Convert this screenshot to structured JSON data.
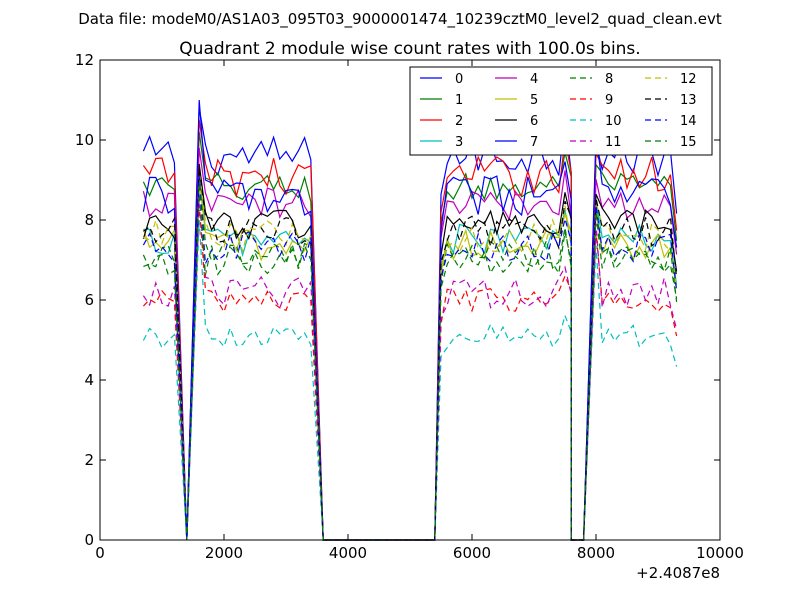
{
  "chart_data": {
    "type": "line",
    "suptitle": "Data file: modeM0/AS1A03_095T03_9000001474_10239cztM0_level2_quad_clean.evt",
    "title": "Quadrant 2 module wise count rates with 100.0s bins.",
    "xlabel": "",
    "ylabel": "",
    "x_offset_label": "+2.4087e8",
    "xlim": [
      0,
      10000
    ],
    "ylim": [
      0,
      12
    ],
    "xticks": [
      "0",
      "2000",
      "4000",
      "6000",
      "8000",
      "10000"
    ],
    "yticks": [
      "0",
      "2",
      "4",
      "6",
      "8",
      "10",
      "12"
    ],
    "legend_position": "top-right",
    "segments": [
      {
        "x_start": 700,
        "n": 6
      },
      {
        "x_start": 1400,
        "n": 1,
        "gap": true
      },
      {
        "x_start": 1600,
        "n": 19
      },
      {
        "x_start": 3600,
        "n": 19,
        "gap": true
      },
      {
        "x_start": 5500,
        "n": 22
      },
      {
        "x_start": 7600,
        "n": 1,
        "gap": true
      },
      {
        "x_start": 7800,
        "n": 1,
        "gap": true
      },
      {
        "x_start": 8000,
        "n": 14
      }
    ],
    "series": [
      {
        "name": "0",
        "color": "#0000ff",
        "dash": false,
        "level": 9.6,
        "amp": 0.5,
        "peak": 10.8
      },
      {
        "name": "1",
        "color": "#007f00",
        "dash": false,
        "level": 8.8,
        "amp": 0.4,
        "peak": 10.2
      },
      {
        "name": "2",
        "color": "#ff0000",
        "dash": false,
        "level": 9.1,
        "amp": 0.5,
        "peak": 10.5
      },
      {
        "name": "3",
        "color": "#00bfbf",
        "dash": false,
        "level": 7.5,
        "amp": 0.4,
        "peak": 9.2
      },
      {
        "name": "4",
        "color": "#bf00bf",
        "dash": false,
        "level": 8.4,
        "amp": 0.4,
        "peak": 9.8
      },
      {
        "name": "5",
        "color": "#bfbf00",
        "dash": false,
        "level": 7.4,
        "amp": 0.4,
        "peak": 9.0
      },
      {
        "name": "6",
        "color": "#000000",
        "dash": false,
        "level": 7.9,
        "amp": 0.4,
        "peak": 9.4
      },
      {
        "name": "7",
        "color": "#0000ff",
        "dash": false,
        "level": 8.6,
        "amp": 0.5,
        "peak": 11.0
      },
      {
        "name": "8",
        "color": "#007f00",
        "dash": true,
        "level": 7.1,
        "amp": 0.4,
        "peak": 9.0
      },
      {
        "name": "9",
        "color": "#ff0000",
        "dash": true,
        "level": 6.0,
        "amp": 0.3,
        "peak": 8.4
      },
      {
        "name": "10",
        "color": "#00bfbf",
        "dash": true,
        "level": 5.1,
        "amp": 0.3,
        "peak": 8.0
      },
      {
        "name": "11",
        "color": "#bf00bf",
        "dash": true,
        "level": 6.2,
        "amp": 0.4,
        "peak": 8.6
      },
      {
        "name": "12",
        "color": "#bfbf00",
        "dash": true,
        "level": 7.6,
        "amp": 0.4,
        "peak": 9.2
      },
      {
        "name": "13",
        "color": "#000000",
        "dash": true,
        "level": 7.7,
        "amp": 0.4,
        "peak": 9.3
      },
      {
        "name": "14",
        "color": "#0000ff",
        "dash": true,
        "level": 7.3,
        "amp": 0.4,
        "peak": 9.1
      },
      {
        "name": "15",
        "color": "#007f00",
        "dash": true,
        "level": 7.0,
        "amp": 0.4,
        "peak": 8.9
      }
    ]
  }
}
